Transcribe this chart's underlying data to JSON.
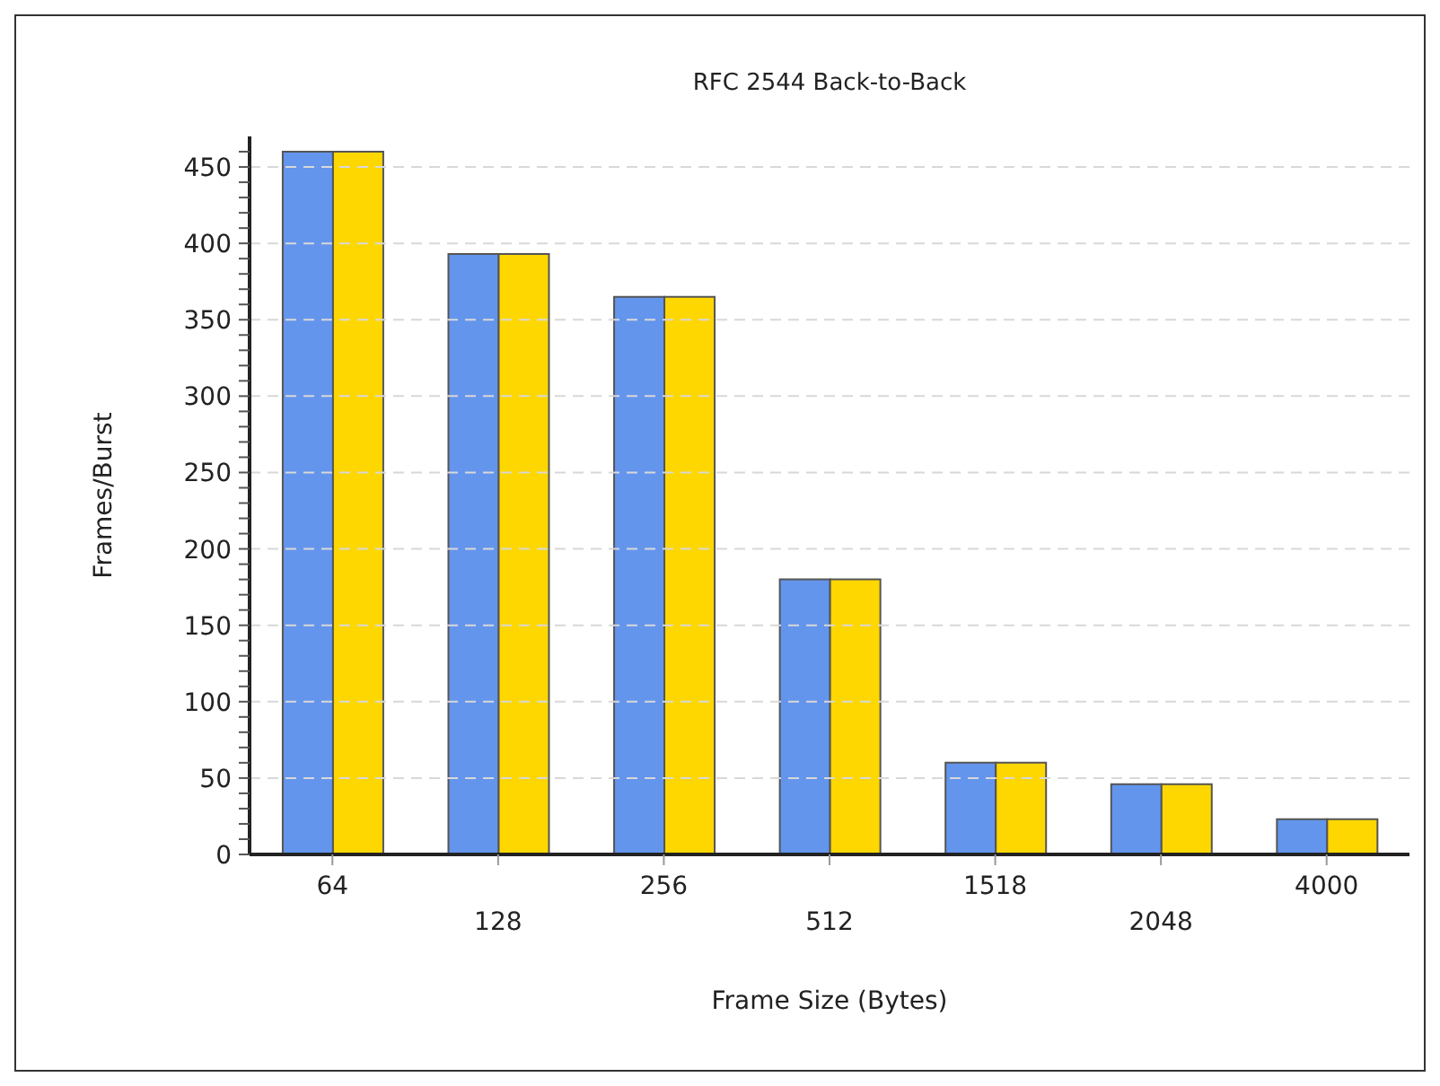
{
  "chart_data": {
    "type": "bar",
    "title": "RFC 2544 Back-to-Back",
    "xlabel": "Frame Size (Bytes)",
    "ylabel": "Frames/Burst",
    "categories": [
      "64",
      "128",
      "256",
      "512",
      "1518",
      "2048",
      "4000"
    ],
    "series": [
      {
        "color": "#6495ed",
        "values": [
          460,
          393,
          365,
          180,
          60,
          46,
          23
        ]
      },
      {
        "color": "#ffd700",
        "values": [
          460,
          393,
          365,
          180,
          60,
          46,
          23
        ]
      }
    ],
    "ylim": [
      0,
      470
    ],
    "yticks": [
      0,
      {
        "value": 10,
        "label": null
      },
      {
        "value": 20,
        "label": null
      },
      {
        "value": 30,
        "label": null
      },
      {
        "value": 40,
        "label": null
      },
      50,
      {
        "value": 60,
        "label": null
      },
      {
        "value": 70,
        "label": null
      },
      {
        "value": 80,
        "label": null
      },
      {
        "value": 90,
        "label": null
      },
      100,
      {
        "value": 110,
        "label": null
      },
      {
        "value": 120,
        "label": null
      },
      {
        "value": 130,
        "label": null
      },
      {
        "value": 140,
        "label": null
      },
      150,
      {
        "value": 160,
        "label": null
      },
      {
        "value": 170,
        "label": null
      },
      {
        "value": 180,
        "label": null
      },
      {
        "value": 190,
        "label": null
      },
      200,
      {
        "value": 210,
        "label": null
      },
      {
        "value": 220,
        "label": null
      },
      {
        "value": 230,
        "label": null
      },
      {
        "value": 240,
        "label": null
      },
      250,
      {
        "value": 260,
        "label": null
      },
      {
        "value": 270,
        "label": null
      },
      {
        "value": 280,
        "label": null
      },
      {
        "value": 290,
        "label": null
      },
      300,
      {
        "value": 310,
        "label": null
      },
      {
        "value": 320,
        "label": null
      },
      {
        "value": 330,
        "label": null
      },
      {
        "value": 340,
        "label": null
      },
      350,
      {
        "value": 360,
        "label": null
      },
      {
        "value": 370,
        "label": null
      },
      {
        "value": 380,
        "label": null
      },
      {
        "value": 390,
        "label": null
      },
      400,
      {
        "value": 410,
        "label": null
      },
      {
        "value": 420,
        "label": null
      },
      {
        "value": 430,
        "label": null
      },
      {
        "value": 440,
        "label": null
      },
      450,
      {
        "value": 460,
        "label": null
      }
    ],
    "grid": "y",
    "legend": false
  }
}
